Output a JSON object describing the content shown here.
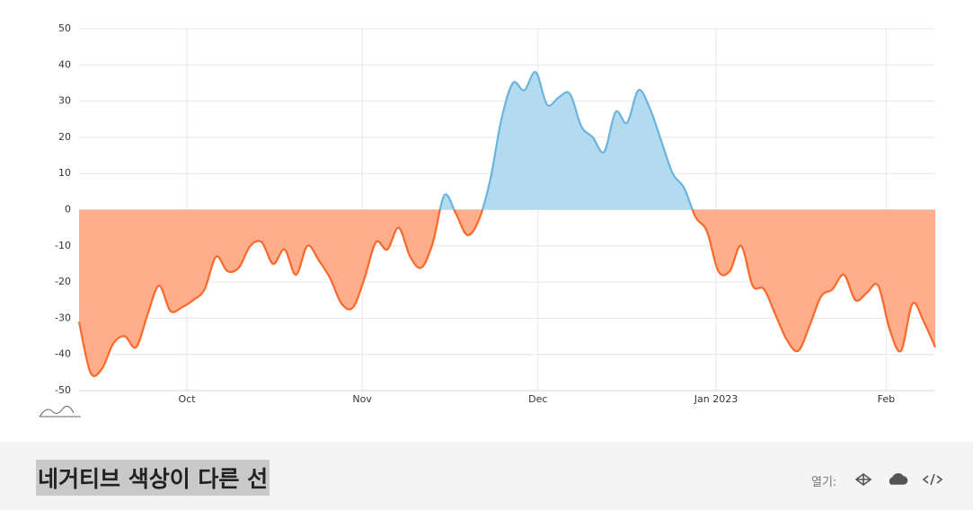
{
  "chart_data": {
    "type": "area",
    "x": [
      0,
      1,
      2,
      3,
      4,
      5,
      6,
      7,
      8,
      9,
      10,
      11,
      12,
      13,
      14,
      15,
      16,
      17,
      18,
      19,
      20,
      21,
      22,
      23,
      24,
      25,
      26,
      27,
      28,
      29,
      30,
      31,
      32,
      33,
      34,
      35,
      36,
      37,
      38,
      39,
      40,
      41,
      42,
      43,
      44,
      45,
      46,
      47,
      48,
      49,
      50,
      51,
      52,
      53,
      54,
      55,
      56,
      57,
      58,
      59,
      60,
      61,
      62,
      63,
      64,
      65,
      66,
      67,
      68,
      69,
      70,
      71,
      72,
      73,
      74,
      75
    ],
    "series": [
      {
        "color": "#6ab5dc",
        "fill_color": "#b3daee",
        "negative_color": "#f9692b",
        "negative_fill_color": "#ffad8b",
        "threshold": 0,
        "values": [
          -31,
          -45,
          -44,
          -37,
          -35,
          -38,
          -29,
          -21,
          -28,
          -27,
          -25,
          -22,
          -13,
          -17,
          -16,
          -10,
          -9,
          -15,
          -11,
          -18,
          -10,
          -14,
          -19,
          -26,
          -27,
          -19,
          -9,
          -11,
          -5,
          -13,
          -16,
          -9,
          4,
          -1,
          -7,
          -3,
          8,
          25,
          35,
          33,
          38,
          29,
          31,
          32,
          23,
          20,
          16,
          27,
          24,
          33,
          28,
          19,
          10,
          6,
          -2,
          -6,
          -17,
          -17,
          -10,
          -21,
          -22,
          -29,
          -36,
          -39,
          -32,
          -24,
          -22,
          -18,
          -25,
          -23,
          -21,
          -33,
          -39,
          -26,
          -31,
          -38
        ]
      }
    ],
    "xlim": [
      0,
      75
    ],
    "xticks": [
      {
        "value": 9.45,
        "label": "Oct"
      },
      {
        "value": 24.8,
        "label": "Nov"
      },
      {
        "value": 40.2,
        "label": "Dec"
      },
      {
        "value": 55.8,
        "label": "Jan 2023"
      },
      {
        "value": 70.7,
        "label": "Feb"
      }
    ],
    "ylim": [
      -50,
      50
    ],
    "yticks": [
      -50,
      -40,
      -30,
      -20,
      -10,
      0,
      10,
      20,
      30,
      40,
      50
    ],
    "grid": true
  },
  "footer": {
    "title": "네거티브 색상이 다른 선",
    "open_label": "열기:"
  }
}
